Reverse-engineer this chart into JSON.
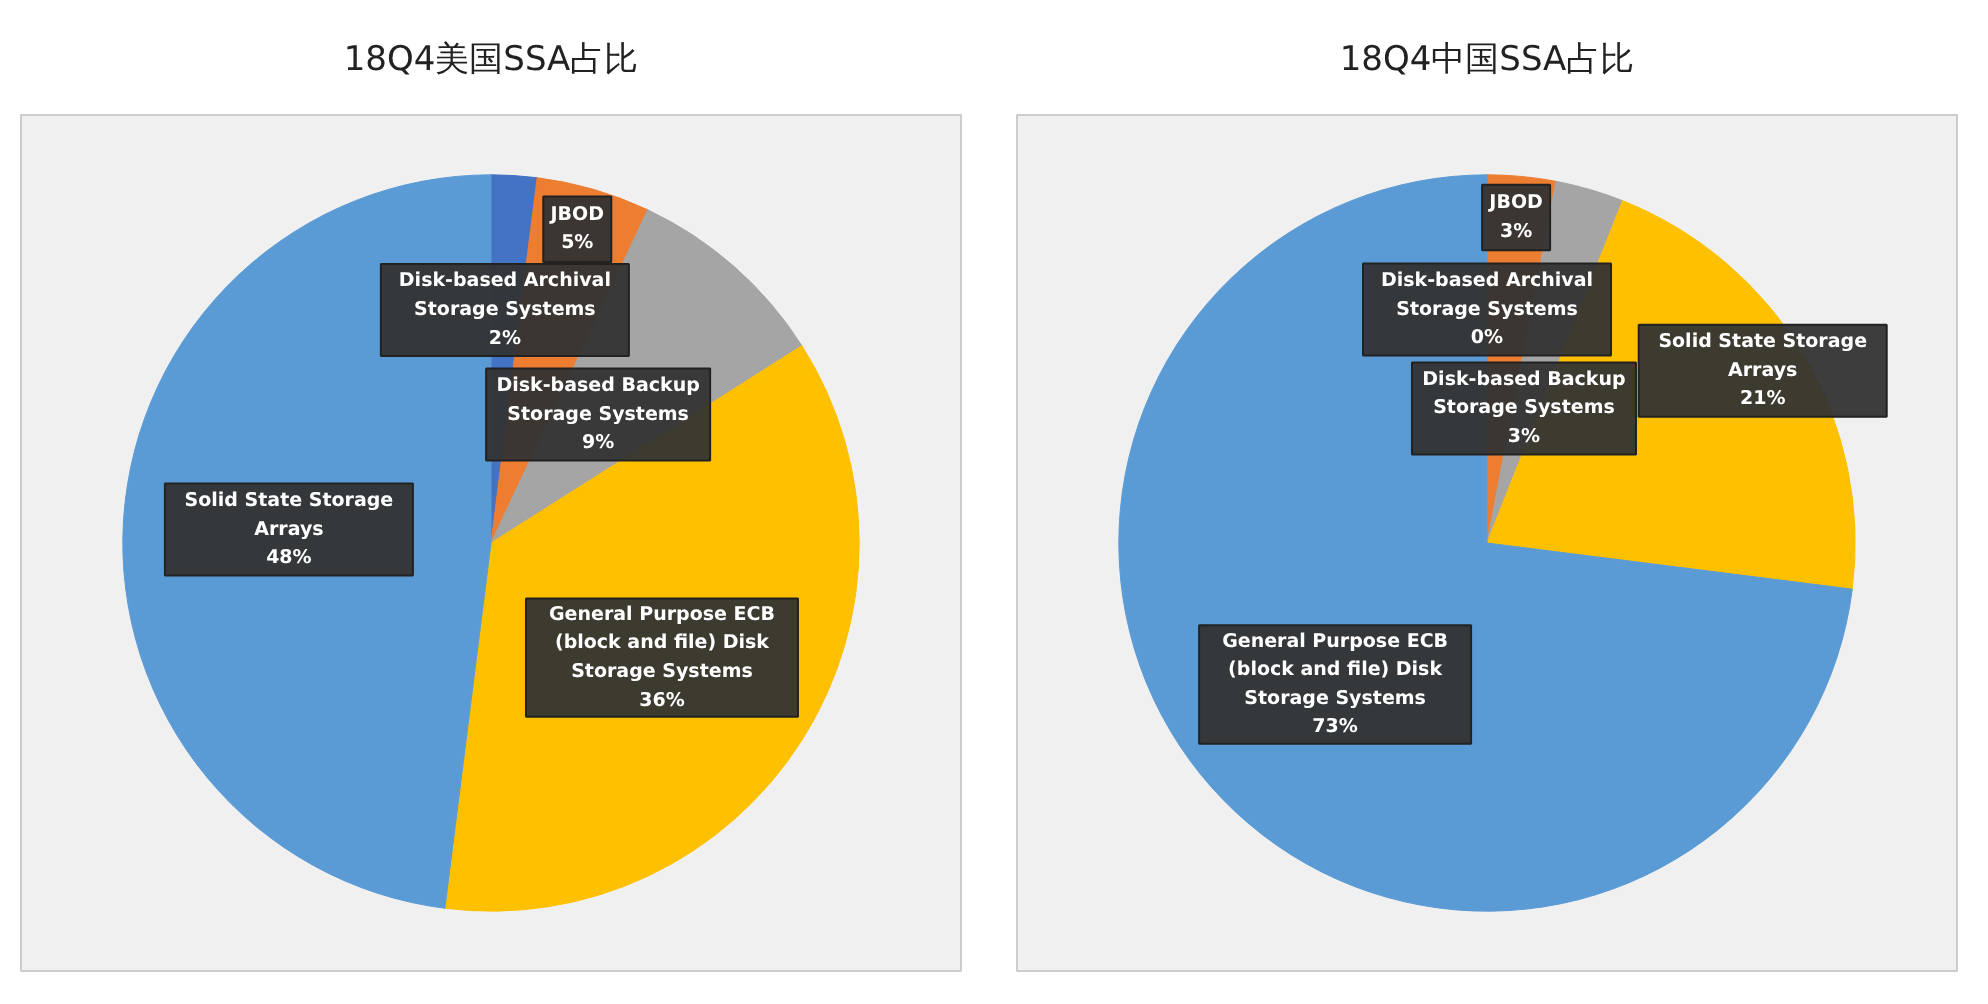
{
  "chart_data": [
    {
      "type": "pie",
      "title": "18Q4美国SSA占比",
      "categories": [
        "Disk-based Archival Storage Systems",
        "JBOD",
        "Disk-based Backup Storage Systems",
        "General Purpose ECB (block and file) Disk Storage Systems",
        "Solid State Storage Arrays"
      ],
      "values": [
        2,
        5,
        9,
        36,
        48
      ],
      "colors": [
        "#4472c4",
        "#ed7d31",
        "#a5a5a5",
        "#ffc000",
        "#5b9bd5"
      ],
      "value_labels": [
        "2%",
        "5%",
        "9%",
        "36%",
        "48%"
      ]
    },
    {
      "type": "pie",
      "title": "18Q4中国SSA占比",
      "categories": [
        "Disk-based Archival Storage Systems",
        "JBOD",
        "Disk-based Backup Storage Systems",
        "Solid State Storage Arrays",
        "General Purpose ECB (block and file) Disk Storage Systems"
      ],
      "values": [
        0,
        3,
        3,
        21,
        73
      ],
      "colors": [
        "#4472c4",
        "#ed7d31",
        "#a5a5a5",
        "#ffc000",
        "#5b9bd5"
      ],
      "value_labels": [
        "0%",
        "3%",
        "3%",
        "21%",
        "73%"
      ]
    }
  ]
}
